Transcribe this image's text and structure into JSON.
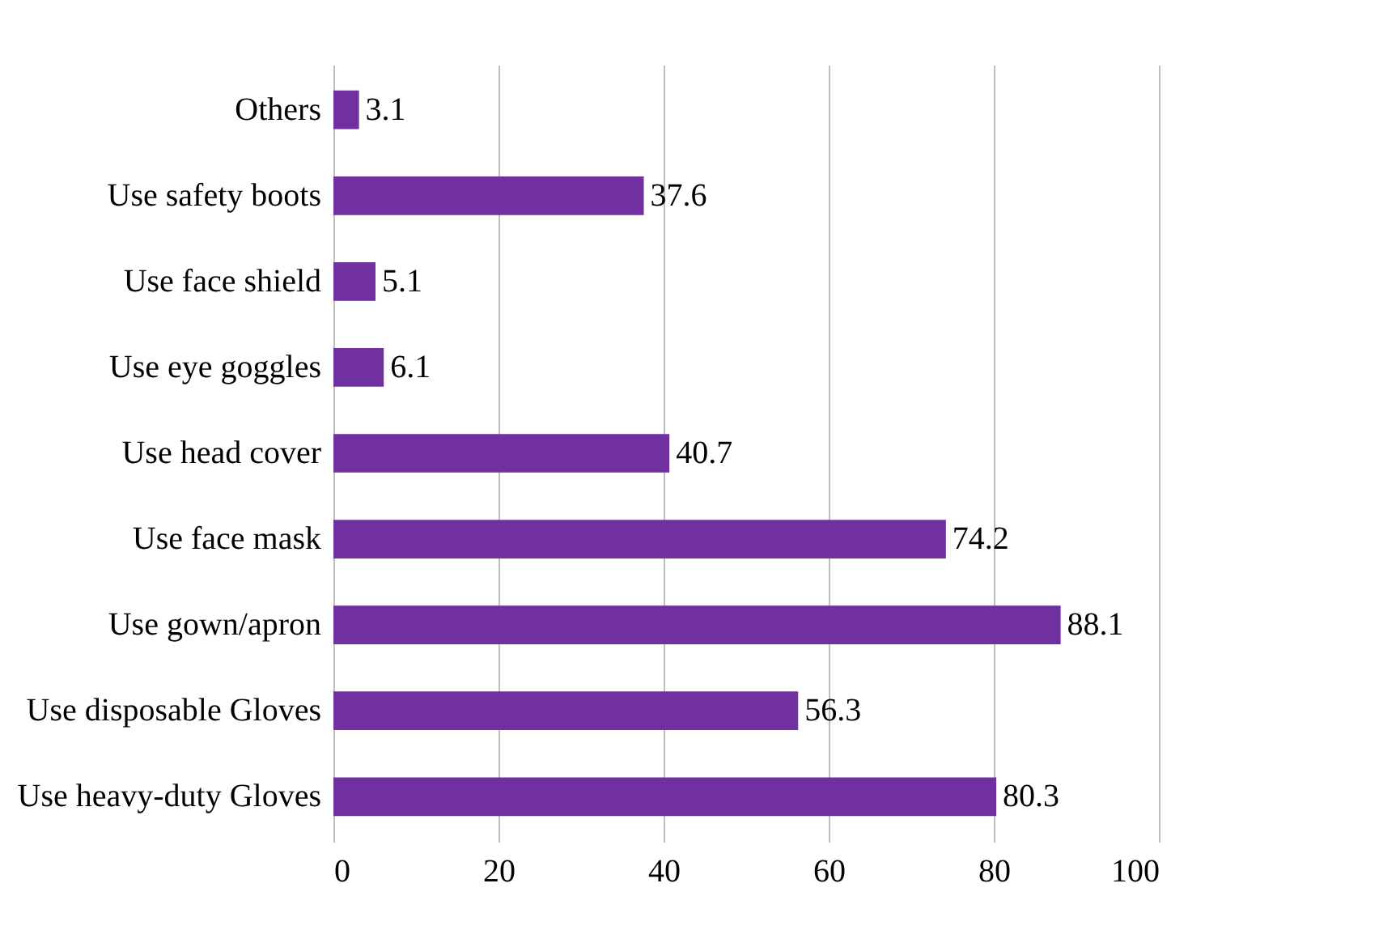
{
  "chart_data": {
    "type": "bar",
    "orientation": "horizontal",
    "categories": [
      "Others",
      "Use safety boots",
      "Use face shield",
      "Use eye goggles",
      "Use head cover",
      "Use face mask",
      "Use gown/apron",
      "Use disposable Gloves",
      "Use heavy-duty Gloves"
    ],
    "values": [
      3.1,
      37.6,
      5.1,
      6.1,
      40.7,
      74.2,
      88.1,
      56.3,
      80.3
    ],
    "color": "#7030a0",
    "xlim": [
      0,
      100
    ],
    "xticks": [
      0,
      20,
      40,
      60,
      80,
      100
    ],
    "grid": "x",
    "data_labels": true
  }
}
